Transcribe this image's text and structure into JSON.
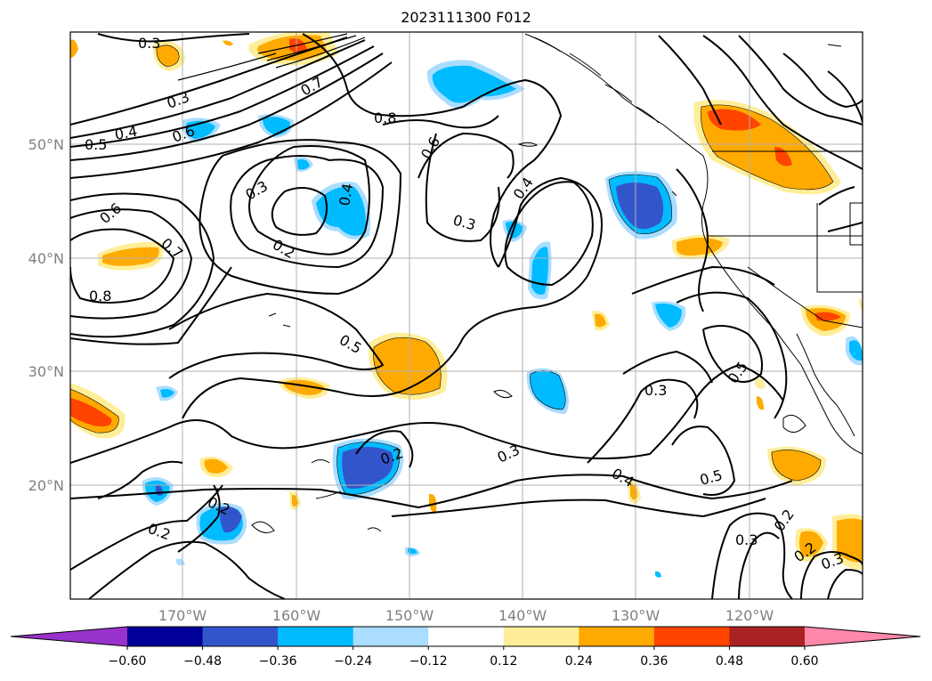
{
  "title": "2023111300 F012",
  "lat_labels": [
    "50°N",
    "40°N",
    "30°N",
    "20°N"
  ],
  "lon_labels": [
    "170°W",
    "160°W",
    "150°W",
    "140°W",
    "130°W",
    "120°W"
  ],
  "colorbar": {
    "ticks": [
      "−0.60",
      "−0.48",
      "−0.36",
      "−0.24",
      "−0.12",
      "0.12",
      "0.24",
      "0.36",
      "0.48",
      "0.60"
    ],
    "colors": [
      "#9933cc",
      "#000099",
      "#3355cc",
      "#00bbff",
      "#aaddff",
      "#ffffff",
      "#ffee99",
      "#ffaa00",
      "#ff4400",
      "#aa2222",
      "#ff88aa"
    ]
  },
  "contour_labels": [
    "0.3",
    "0.5",
    "0.4",
    "0.6",
    "0.3",
    "0.8",
    "0.6",
    "0.3",
    "0.2",
    "0.4",
    "0.6",
    "0.7",
    "0.8",
    "0.3",
    "0.4",
    "0.5",
    "0.2",
    "0.2",
    "0.3",
    "0.4",
    "0.5",
    "0.3",
    "0.5",
    "0.3",
    "0.2",
    "0.2",
    "0.3",
    "0.2",
    "0.7"
  ],
  "shading_colors": {
    "light_orange": "#ffee99",
    "orange": "#ffaa00",
    "red_orange": "#ff4400",
    "light_blue": "#aaddff",
    "blue": "#00bbff",
    "royal_blue": "#3355cc"
  }
}
